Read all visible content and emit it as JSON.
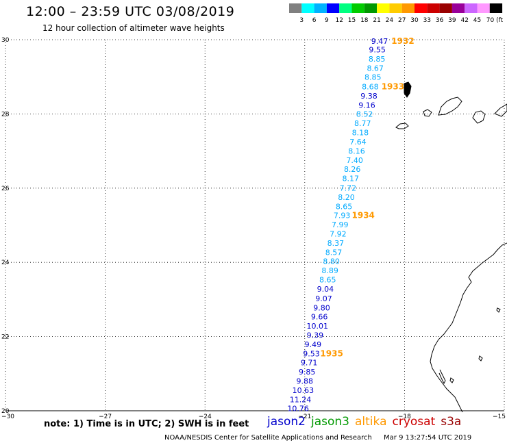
{
  "title": "12:00 – 23:59 UTC 03/08/2019",
  "subtitle": "12 hour collection of altimeter wave heights",
  "colorbar": {
    "colors": [
      "#808080",
      "#00ffff",
      "#00b3ff",
      "#0000ff",
      "#00ff80",
      "#00cc00",
      "#009900",
      "#ffff00",
      "#ffcc00",
      "#ff9900",
      "#ff0000",
      "#cc0000",
      "#990000",
      "#990099",
      "#cc66ff",
      "#ff99ff",
      "#000000"
    ],
    "labels": [
      "3",
      "6",
      "9",
      "12",
      "15",
      "18",
      "21",
      "24",
      "27",
      "30",
      "33",
      "36",
      "39",
      "42",
      "45",
      "70 (ft)"
    ]
  },
  "axes": {
    "lat_labels": [
      "30",
      "28",
      "26",
      "24",
      "22",
      "20"
    ],
    "lat_values": [
      30,
      28,
      26,
      24,
      22,
      20
    ],
    "lon_labels": [
      "−30",
      "−27",
      "−24",
      "−21",
      "−18",
      "−15"
    ],
    "lon_values": [
      -30,
      -27,
      -24,
      -21,
      -18,
      -15
    ]
  },
  "track": {
    "values": [
      "9.47",
      "9.55",
      "8.85",
      "8.67",
      "8.85",
      "8.68",
      "9.38",
      "9.16",
      "8.52",
      "8.77",
      "8.18",
      "7.64",
      "8.16",
      "7.40",
      "8.26",
      "8.17",
      "7.72",
      "8.20",
      "8.65",
      "7.93",
      "7.99",
      "7.92",
      "8.37",
      "8.57",
      "8.80",
      "8.89",
      "8.65",
      "9.04",
      "9.07",
      "9.80",
      "9.66",
      "10.01",
      "9.39",
      "9.49",
      "9.53",
      "9.71",
      "9.85",
      "9.88",
      "10.63",
      "11.24",
      "10.76"
    ],
    "lats": [
      29.96,
      29.73,
      29.48,
      29.23,
      28.99,
      28.74,
      28.49,
      28.24,
      28.0,
      27.75,
      27.5,
      27.25,
      27.0,
      26.75,
      26.51,
      26.26,
      26.01,
      25.76,
      25.51,
      25.27,
      25.02,
      24.77,
      24.52,
      24.27,
      24.03,
      23.78,
      23.53,
      23.28,
      23.03,
      22.78,
      22.54,
      22.29,
      22.04,
      21.79,
      21.54,
      21.3,
      21.05,
      20.8,
      20.55,
      20.3,
      20.06
    ],
    "lons": [
      -18.75,
      -18.82,
      -18.83,
      -18.88,
      -18.95,
      -19.03,
      -19.07,
      -19.13,
      -19.2,
      -19.26,
      -19.33,
      -19.4,
      -19.44,
      -19.5,
      -19.57,
      -19.62,
      -19.7,
      -19.75,
      -19.82,
      -19.88,
      -19.94,
      -20.0,
      -20.07,
      -20.13,
      -20.2,
      -20.24,
      -20.31,
      -20.38,
      -20.43,
      -20.49,
      -20.56,
      -20.62,
      -20.69,
      -20.75,
      -20.8,
      -20.87,
      -20.93,
      -21.0,
      -21.05,
      -21.13,
      -21.2
    ],
    "colors": [
      "#0000cc",
      "#0000cc",
      "#00aaff",
      "#00aaff",
      "#00aaff",
      "#00aaff",
      "#0000cc",
      "#0000cc",
      "#00aaff",
      "#00aaff",
      "#00aaff",
      "#00aaff",
      "#00aaff",
      "#00aaff",
      "#00aaff",
      "#00aaff",
      "#00aaff",
      "#00aaff",
      "#00aaff",
      "#00aaff",
      "#00aaff",
      "#00aaff",
      "#00aaff",
      "#00aaff",
      "#00aaff",
      "#00aaff",
      "#00aaff",
      "#0000cc",
      "#0000cc",
      "#0000cc",
      "#0000cc",
      "#0000cc",
      "#0000cc",
      "#0000cc",
      "#0000cc",
      "#0000cc",
      "#0000cc",
      "#0000cc",
      "#0000cc",
      "#0000cc",
      "#0000cc"
    ]
  },
  "pass_times": [
    {
      "label": "1932",
      "lat": 29.96,
      "lon": -18.05
    },
    {
      "label": "1933",
      "lat": 28.74,
      "lon": -18.35
    },
    {
      "label": "1934",
      "lat": 25.27,
      "lon": -19.24
    },
    {
      "label": "1935",
      "lat": 21.54,
      "lon": -20.19
    }
  ],
  "note": "note: 1) Time is in UTC; 2) SWH is in feet",
  "satellites": [
    {
      "name": "jason2",
      "color": "#0000cc"
    },
    {
      "name": "jason3",
      "color": "#009900"
    },
    {
      "name": "altika",
      "color": "#ff9900"
    },
    {
      "name": "cryosat",
      "color": "#cc0000"
    },
    {
      "name": "s3a",
      "color": "#990000"
    }
  ],
  "footer": {
    "credit": "NOAA/NESDIS Center for Satellite Applications and Research",
    "timestamp": "Mar  9 13:27:54 UTC 2019"
  }
}
